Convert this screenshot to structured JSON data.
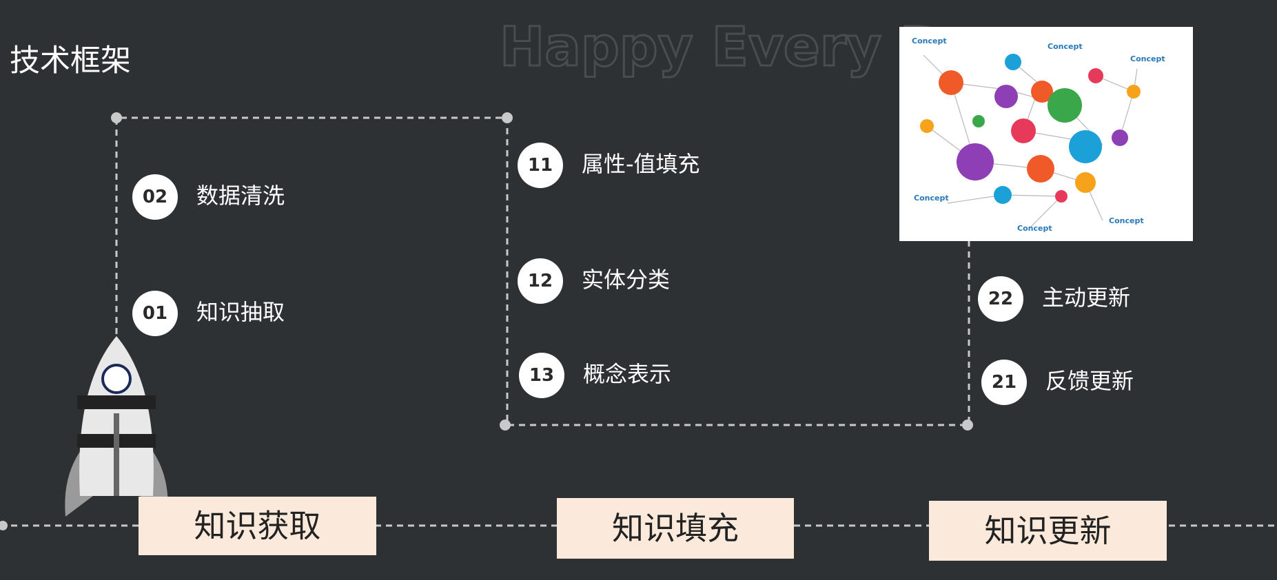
{
  "title": "技术框架",
  "watermark": "Happy Every Da",
  "stages": [
    {
      "label": "知识获取",
      "steps": [
        {
          "number": "02",
          "label": "数据清洗"
        },
        {
          "number": "01",
          "label": "知识抽取"
        }
      ]
    },
    {
      "label": "知识填充",
      "steps": [
        {
          "number": "11",
          "label": "属性-值填充"
        },
        {
          "number": "12",
          "label": "实体分类"
        },
        {
          "number": "13",
          "label": "概念表示"
        }
      ]
    },
    {
      "label": "知识更新",
      "steps": [
        {
          "number": "22",
          "label": "主动更新"
        },
        {
          "number": "21",
          "label": "反馈更新"
        }
      ]
    }
  ],
  "concept_image": {
    "labels": [
      "Concept",
      "Concept",
      "Concept",
      "Concept",
      "Concept",
      "Concept"
    ]
  }
}
